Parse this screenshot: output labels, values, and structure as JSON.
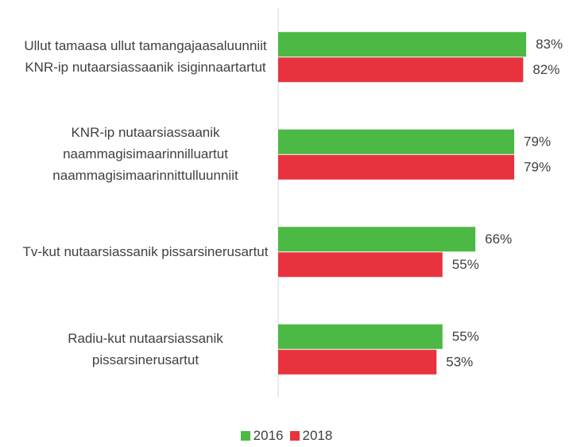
{
  "chart_data": {
    "type": "hbar",
    "categories": [
      "Ullut tamaasa ullut tamangajaasaluunniit KNR-ip nutaarsiassaanik isiginnaartartut",
      "KNR-ip nutaarsiassaanik naammagisimaarinnilluartut naammagisimaarinnittulluunniit",
      "Tv-kut nutaarsiassanik pissarsinerusartut",
      "Radiu-kut nutaarsiassanik pissarsinerusartut"
    ],
    "series": [
      {
        "name": "2016",
        "color": "#4cb944",
        "values": [
          83,
          79,
          66,
          55
        ],
        "value_labels": [
          "83%",
          "79%",
          "66%",
          "55%"
        ]
      },
      {
        "name": "2018",
        "color": "#e8333f",
        "values": [
          82,
          79,
          55,
          53
        ],
        "value_labels": [
          "82%",
          "79%",
          "55%",
          "53%"
        ]
      }
    ],
    "xlim": [
      0,
      100
    ],
    "legend": "bottom"
  }
}
